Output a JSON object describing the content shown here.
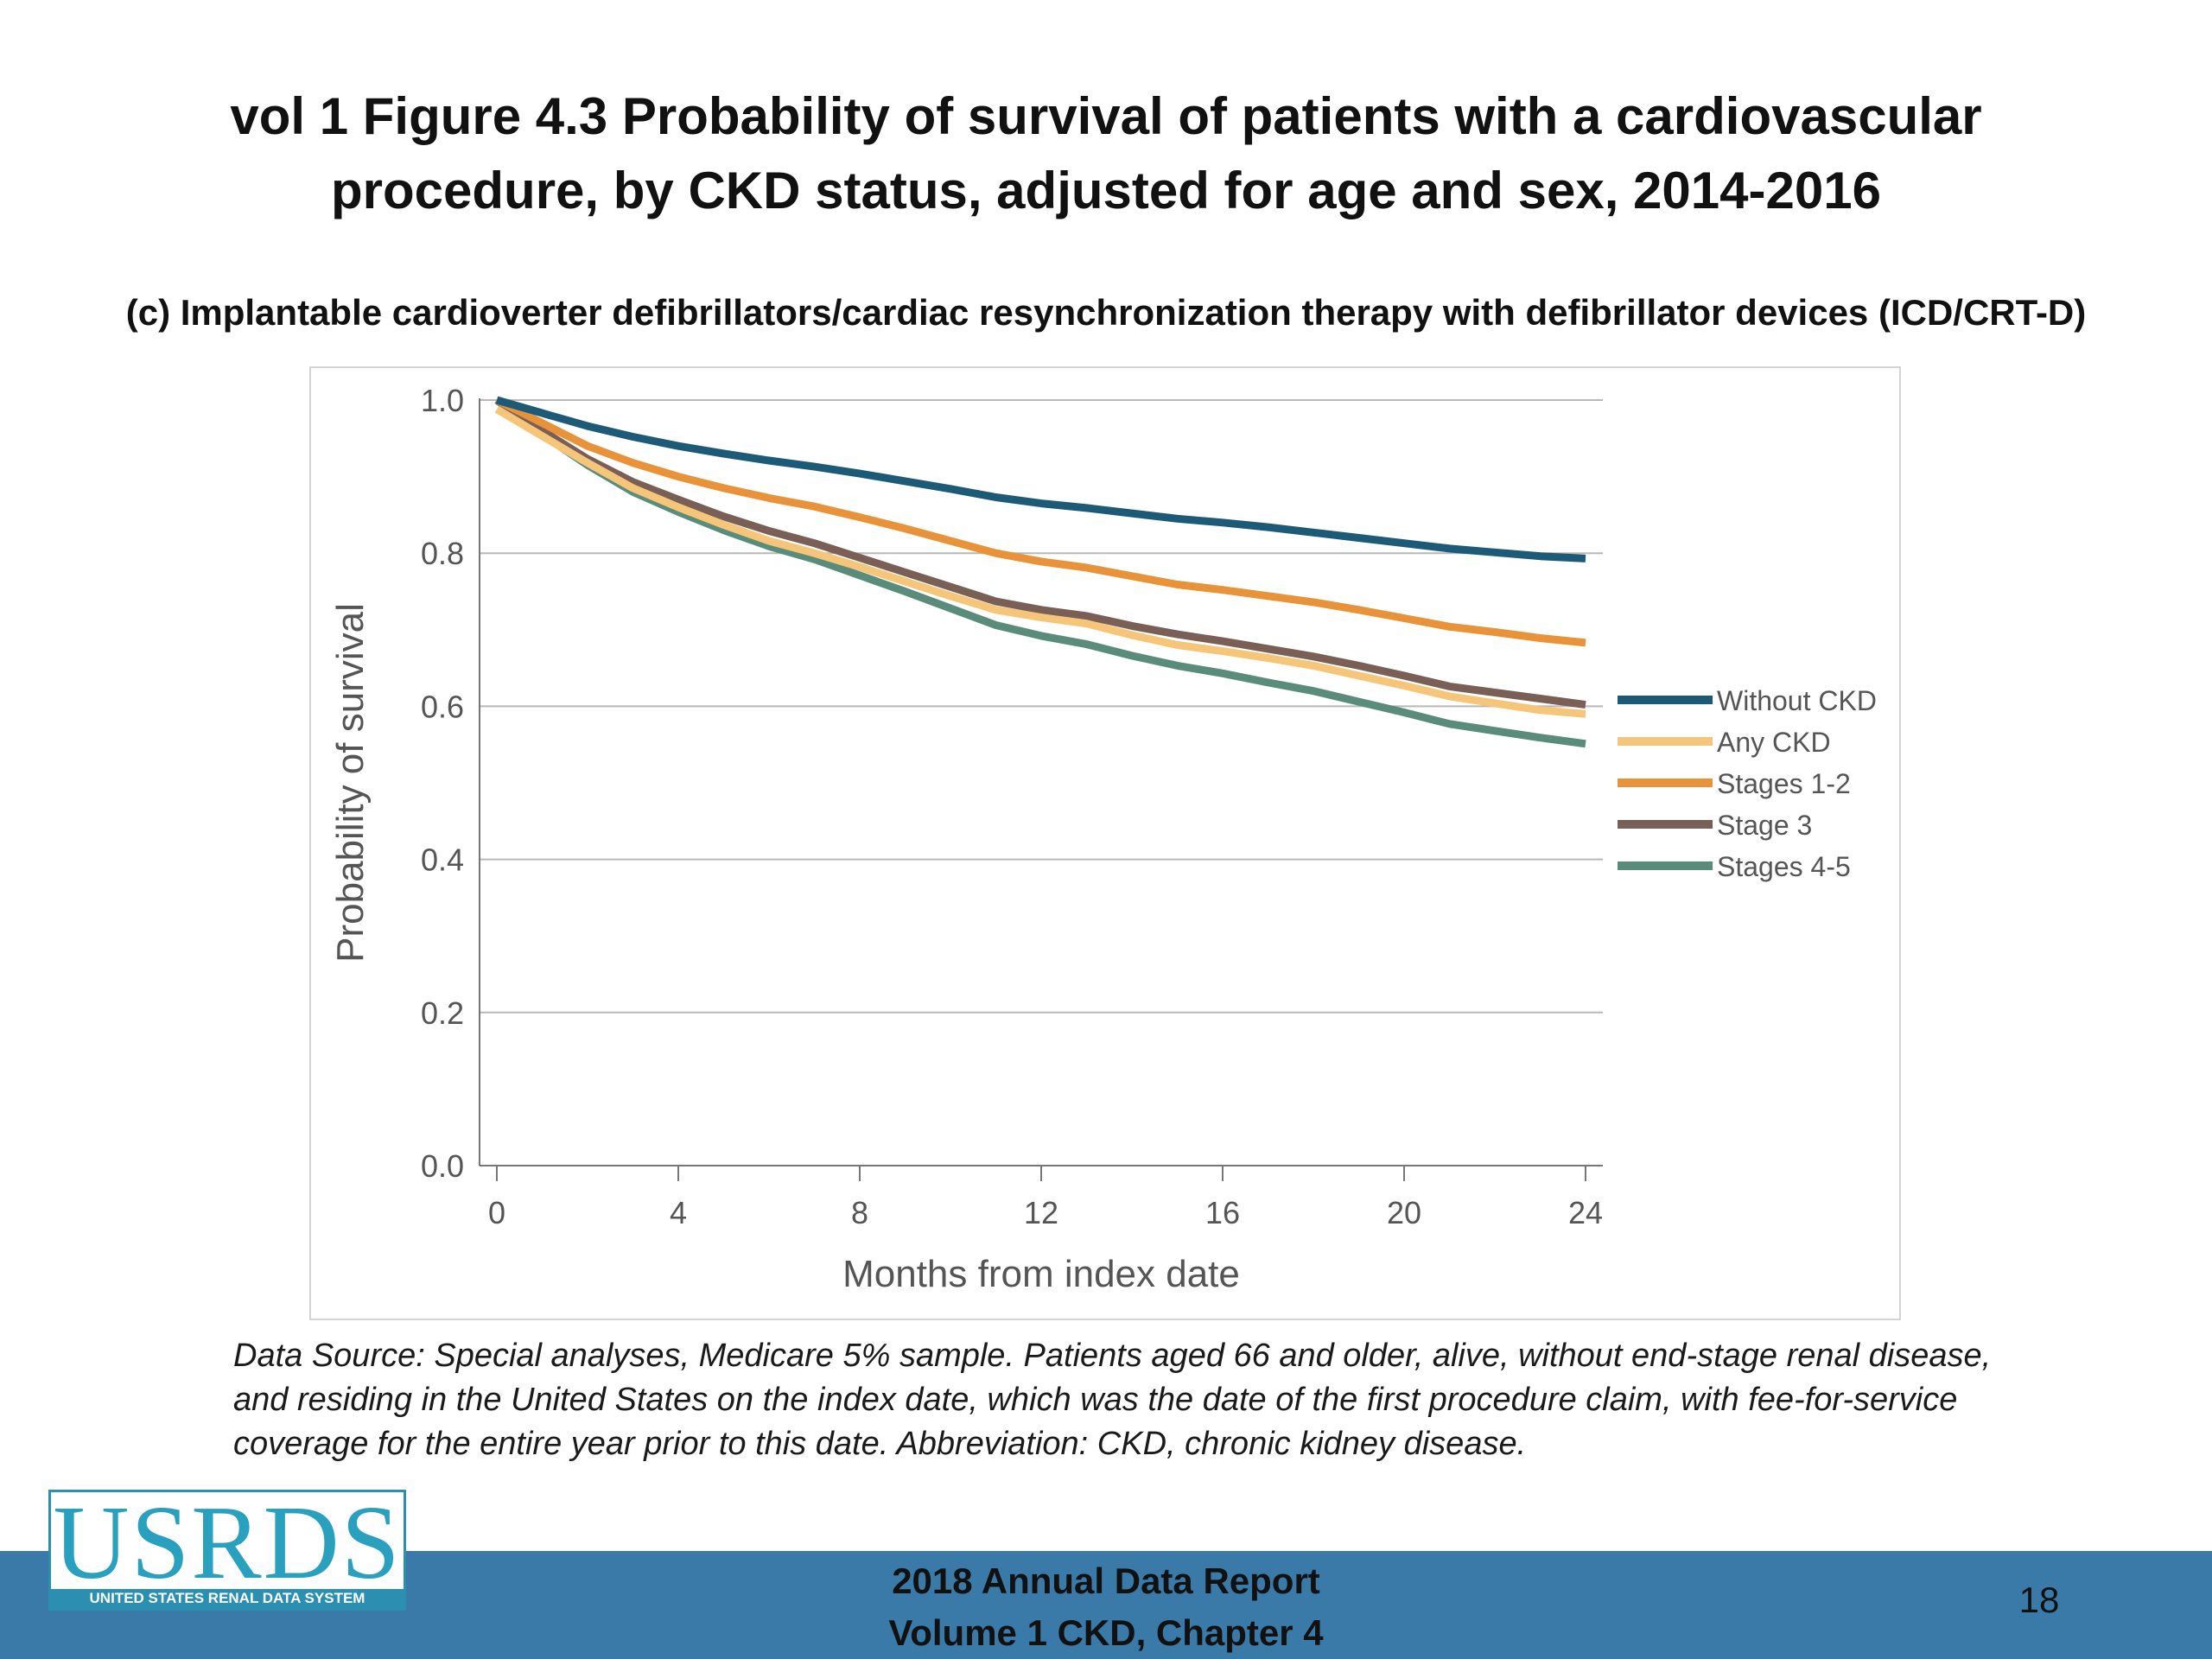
{
  "slide": {
    "title_line1": "vol 1 Figure 4.3 Probability of survival of patients with a cardiovascular",
    "title_line2": "procedure, by CKD status, adjusted for age and sex, 2014-2016",
    "subtitle": "(c) Implantable cardioverter defibrillators/cardiac resynchronization therapy with defibrillator devices (ICD/CRT-D)",
    "footnote": "Data Source: Special analyses, Medicare 5% sample. Patients aged 66 and older, alive, without end-stage renal disease, and residing in the United States on the index date, which was the date of the first procedure claim, with fee-for-service coverage for the entire year prior to this date. Abbreviation: CKD, chronic kidney disease.",
    "footer_line1": "2018 Annual Data Report",
    "footer_line2": "Volume 1 CKD, Chapter 4",
    "page_number": "18",
    "footer_color": "#3a7aa8"
  },
  "logo": {
    "main_text": "USRDS",
    "sub_text": "UNITED STATES RENAL DATA SYSTEM",
    "color": "#2a8fb0"
  },
  "chart_data": {
    "type": "line",
    "xlabel": "Months from index date",
    "ylabel": "Probability of survival",
    "xlim": [
      0,
      24
    ],
    "ylim": [
      0.0,
      1.0
    ],
    "xticks": [
      0,
      4,
      8,
      12,
      16,
      20,
      24
    ],
    "yticks": [
      0.0,
      0.2,
      0.4,
      0.6,
      0.8,
      1.0
    ],
    "ytick_labels": [
      "0.0",
      "0.2",
      "0.4",
      "0.6",
      "0.8",
      "1.0"
    ],
    "grid": "horizontal",
    "legend_position": "right",
    "x": [
      0,
      1,
      2,
      3,
      4,
      5,
      6,
      7,
      8,
      9,
      10,
      11,
      12,
      13,
      14,
      15,
      16,
      17,
      18,
      19,
      20,
      21,
      22,
      23,
      24
    ],
    "series": [
      {
        "name": "Without CKD",
        "color": "#1d5a78",
        "values": [
          1.0,
          0.983,
          0.966,
          0.952,
          0.94,
          0.93,
          0.921,
          0.913,
          0.904,
          0.894,
          0.884,
          0.873,
          0.865,
          0.859,
          0.852,
          0.845,
          0.84,
          0.834,
          0.827,
          0.82,
          0.813,
          0.806,
          0.801,
          0.796,
          0.793
        ]
      },
      {
        "name": "Any CKD",
        "color": "#f5c67a",
        "values": [
          0.988,
          0.953,
          0.918,
          0.885,
          0.86,
          0.837,
          0.816,
          0.8,
          0.782,
          0.763,
          0.744,
          0.726,
          0.716,
          0.708,
          0.693,
          0.68,
          0.672,
          0.663,
          0.653,
          0.64,
          0.627,
          0.613,
          0.604,
          0.595,
          0.59
        ]
      },
      {
        "name": "Stages 1-2",
        "color": "#e8923a",
        "values": [
          1.0,
          0.97,
          0.94,
          0.918,
          0.9,
          0.885,
          0.872,
          0.861,
          0.847,
          0.832,
          0.816,
          0.8,
          0.789,
          0.781,
          0.77,
          0.759,
          0.752,
          0.744,
          0.736,
          0.726,
          0.715,
          0.704,
          0.697,
          0.689,
          0.683
        ]
      },
      {
        "name": "Stage 3",
        "color": "#7a5f57",
        "values": [
          1.0,
          0.96,
          0.923,
          0.893,
          0.87,
          0.848,
          0.829,
          0.813,
          0.794,
          0.775,
          0.756,
          0.737,
          0.726,
          0.718,
          0.705,
          0.694,
          0.685,
          0.675,
          0.665,
          0.653,
          0.64,
          0.626,
          0.618,
          0.61,
          0.602
        ]
      },
      {
        "name": "Stages 4-5",
        "color": "#5a8c7c",
        "values": [
          1.0,
          0.955,
          0.915,
          0.88,
          0.854,
          0.83,
          0.809,
          0.792,
          0.771,
          0.75,
          0.728,
          0.706,
          0.692,
          0.681,
          0.666,
          0.653,
          0.643,
          0.631,
          0.62,
          0.606,
          0.592,
          0.577,
          0.568,
          0.559,
          0.551
        ]
      }
    ]
  }
}
